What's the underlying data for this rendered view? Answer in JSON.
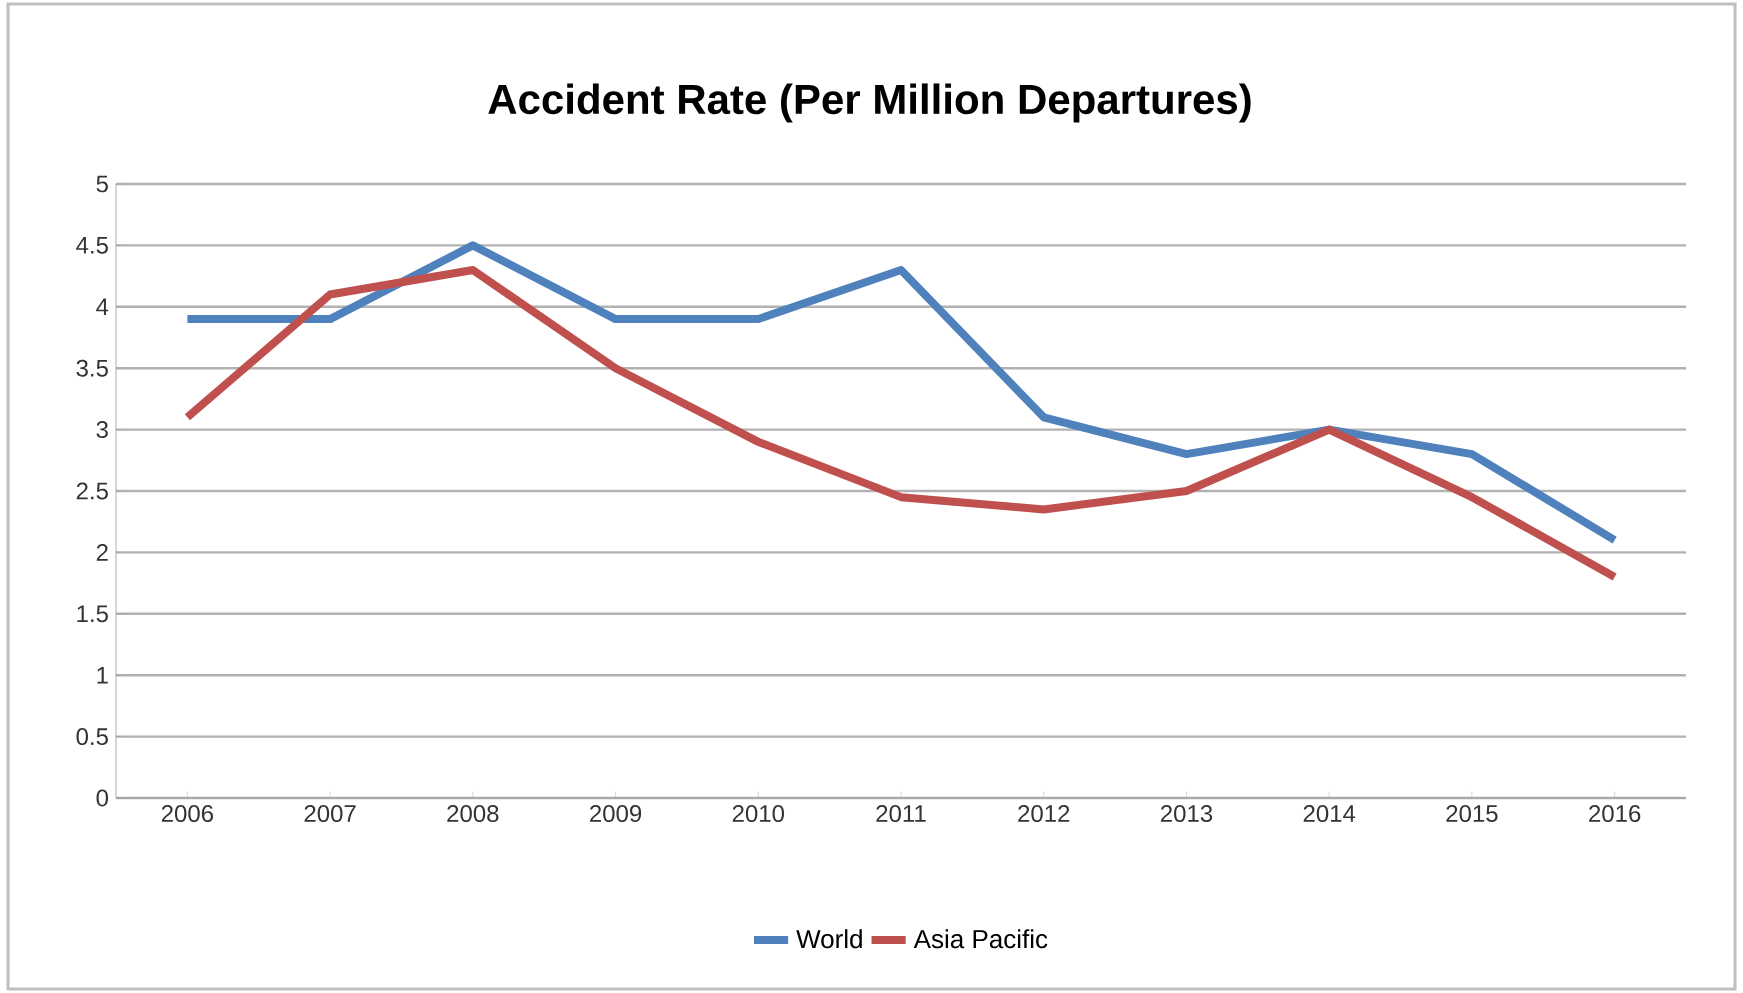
{
  "chart_data": {
    "type": "line",
    "title": "Accident Rate (Per Million Departures)",
    "categories": [
      "2006",
      "2007",
      "2008",
      "2009",
      "2010",
      "2011",
      "2012",
      "2013",
      "2014",
      "2015",
      "2016"
    ],
    "series": [
      {
        "name": "World",
        "color": "#4f81bd",
        "values": [
          3.9,
          3.9,
          4.5,
          3.9,
          3.9,
          4.3,
          3.1,
          2.8,
          3.0,
          2.8,
          2.1
        ]
      },
      {
        "name": "Asia Pacific",
        "color": "#c0504d",
        "values": [
          3.1,
          4.1,
          4.3,
          3.5,
          2.9,
          2.45,
          2.35,
          2.5,
          3.0,
          2.45,
          1.8
        ]
      }
    ],
    "ylim": [
      0,
      5
    ],
    "yticks": [
      0,
      0.5,
      1,
      1.5,
      2,
      2.5,
      3,
      3.5,
      4,
      4.5,
      5
    ],
    "grid": "y",
    "legend": "bottom",
    "marker": "none",
    "line_style": "solid"
  }
}
